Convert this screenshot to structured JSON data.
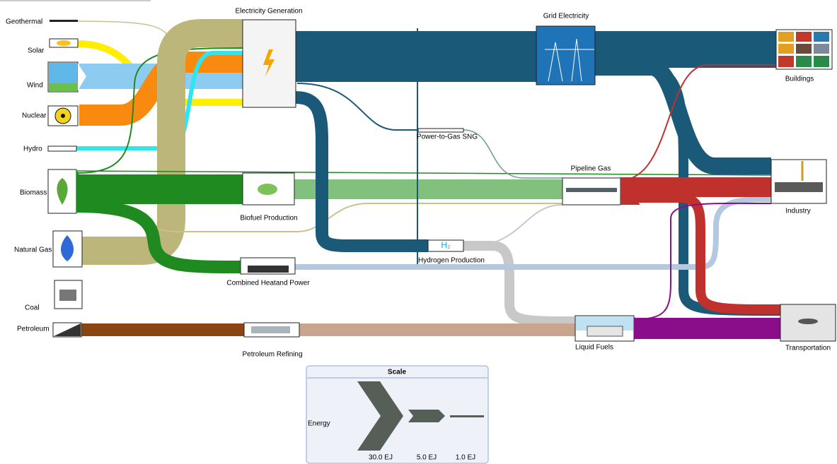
{
  "sources": [
    "Geothermal",
    "Solar",
    "Wind",
    "Nuclear",
    "Hydro",
    "Biomass",
    "Natural Gas",
    "Coal",
    "Petroleum"
  ],
  "processes": {
    "electricity_generation": "Electricity Generation",
    "grid_electricity": "Grid Electricity",
    "power_to_gas": "Power-to-Gas SNG",
    "pipeline_gas": "Pipeline Gas",
    "biofuel_production": "Biofuel Production",
    "hydrogen_production": "Hydrogen Production",
    "hydrogen_icon": "H₂",
    "chp": "Combined Heatand Power",
    "petroleum_refining": "Petroleum Refining",
    "liquid_fuels": "Liquid Fuels"
  },
  "sinks": [
    "Buildings",
    "Industry",
    "Transportation"
  ],
  "scale": {
    "title": "Scale",
    "label": "Energy",
    "items": [
      "30.0 EJ",
      "5.0 EJ",
      "1.0 EJ"
    ]
  }
}
